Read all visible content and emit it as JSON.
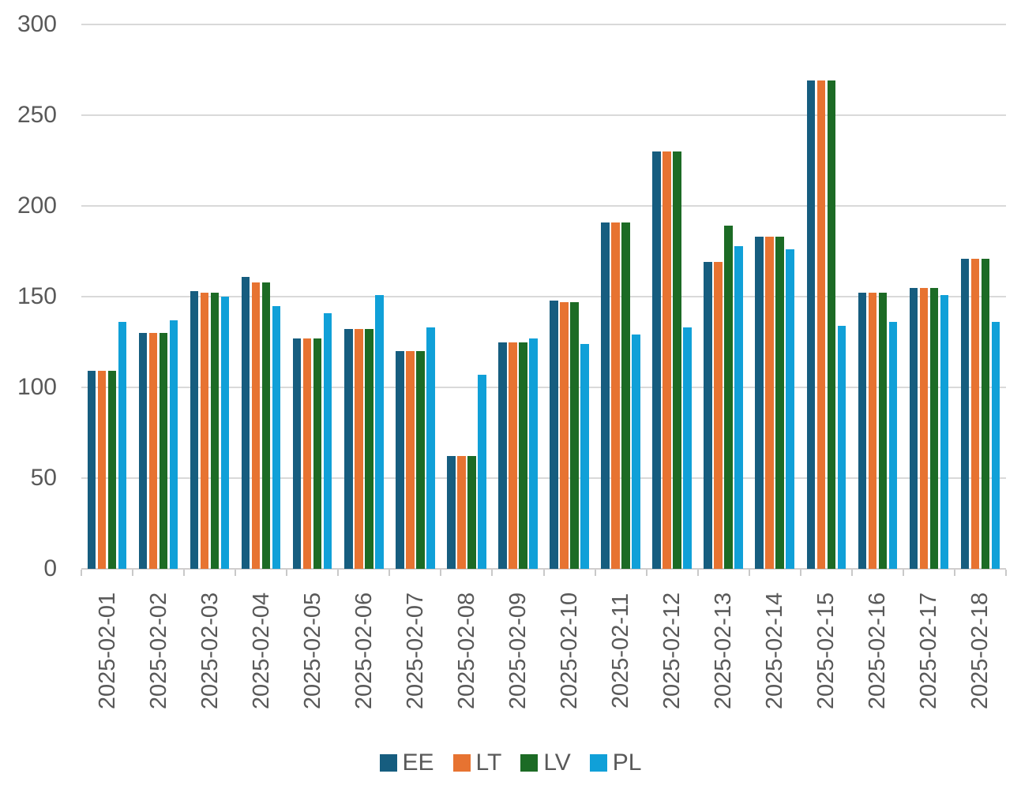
{
  "chart_data": {
    "type": "bar",
    "title": "",
    "xlabel": "",
    "ylabel": "",
    "categories": [
      "2025-02-01",
      "2025-02-02",
      "2025-02-03",
      "2025-02-04",
      "2025-02-05",
      "2025-02-06",
      "2025-02-07",
      "2025-02-08",
      "2025-02-09",
      "2025-02-10",
      "2025-02-11",
      "2025-02-12",
      "2025-02-13",
      "2025-02-14",
      "2025-02-15",
      "2025-02-16",
      "2025-02-17",
      "2025-02-18"
    ],
    "series": [
      {
        "name": "EE",
        "color": "#165D7F",
        "values": [
          109,
          130,
          153,
          161,
          127,
          132,
          120,
          62,
          125,
          148,
          191,
          230,
          169,
          183,
          269,
          152,
          155,
          171
        ]
      },
      {
        "name": "LT",
        "color": "#E77331",
        "values": [
          109,
          130,
          152,
          158,
          127,
          132,
          120,
          62,
          125,
          147,
          191,
          230,
          169,
          183,
          269,
          152,
          155,
          171
        ]
      },
      {
        "name": "LV",
        "color": "#1C6B25",
        "values": [
          109,
          130,
          152,
          158,
          127,
          132,
          120,
          62,
          125,
          147,
          191,
          230,
          189,
          183,
          269,
          152,
          155,
          171
        ]
      },
      {
        "name": "PL",
        "color": "#10A0D8",
        "values": [
          136,
          137,
          150,
          145,
          141,
          151,
          133,
          107,
          127,
          124,
          129,
          133,
          178,
          176,
          134,
          136,
          151,
          136
        ]
      }
    ],
    "ylim": [
      0,
      300
    ],
    "yticks": [
      0,
      50,
      100,
      150,
      200,
      250,
      300
    ],
    "grid": true,
    "legend_position": "bottom",
    "colors": {
      "text": "#595959",
      "gridline": "#d9d9d9",
      "axis_line": "#d0cece",
      "tick": "#c9c9c9",
      "background": "#ffffff"
    }
  }
}
